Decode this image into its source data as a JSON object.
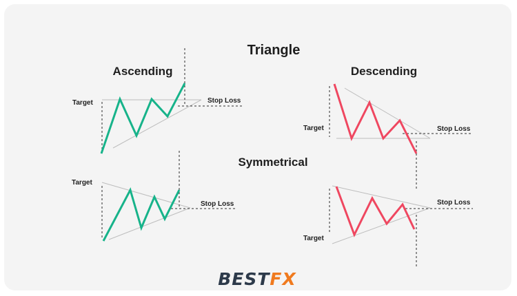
{
  "title": "Triangle",
  "ascending": {
    "heading": "Ascending",
    "target_label": "Target",
    "stop_label": "Stop Loss",
    "line_color": "#17b38a"
  },
  "descending": {
    "heading": "Descending",
    "target_label": "Target",
    "stop_label": "Stop Loss",
    "line_color": "#ef4760"
  },
  "symmetrical": {
    "heading": "Symmetrical",
    "bullish": {
      "target_label": "Target",
      "stop_label": "Stop Loss",
      "line_color": "#17b38a"
    },
    "bearish": {
      "target_label": "Target",
      "stop_label": "Stop Loss",
      "line_color": "#ef4760"
    }
  },
  "logo": {
    "part1": "BEST",
    "part2": "FX",
    "color1": "#2d3a4a",
    "color2": "#f07a1e"
  }
}
